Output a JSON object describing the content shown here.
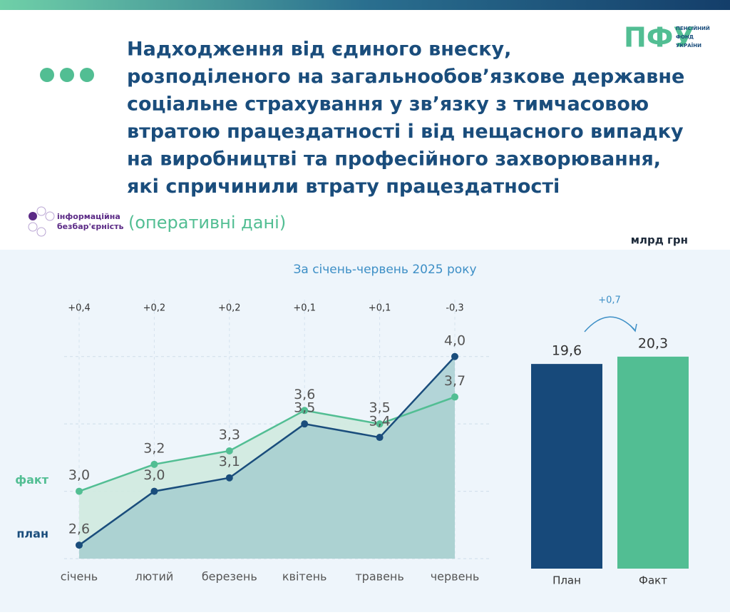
{
  "header": {
    "title_lines": [
      "Надходження від єдиного внеску,",
      "розподіленого на загальнообов’язкове державне",
      "соціальне страхування у зв’язку з тимчасовою",
      "втратою працездатності і від нещасного випадку",
      "на виробництві та професійного захворювання,",
      "які спричинили втрату працездатності"
    ],
    "subtitle": "(оперативні дані)",
    "logo": {
      "abbr": "ПФУ",
      "name_lines": [
        "ПЕНСІЙНИЙ",
        "ФОНД",
        "УКРАЇНИ"
      ]
    },
    "badge_lines": [
      "інформаційна",
      "безбар'єрність"
    ]
  },
  "unit": "млрд грн",
  "period": "За січень-червень 2025 року",
  "chart_data": [
    {
      "type": "line",
      "categories": [
        "січень",
        "лютий",
        "березень",
        "квітень",
        "травень",
        "червень"
      ],
      "series": [
        {
          "name": "факт",
          "color": "#52be93",
          "values": [
            3.0,
            3.2,
            3.3,
            3.6,
            3.5,
            3.7
          ],
          "value_labels": [
            "3,0",
            "3,2",
            "3,3",
            "3,6",
            "3,5",
            "3,7"
          ]
        },
        {
          "name": "план",
          "color": "#1a4d7c",
          "values": [
            2.6,
            3.0,
            3.1,
            3.5,
            3.4,
            4.0
          ],
          "value_labels": [
            "2,6",
            "3,0",
            "3,1",
            "3,5",
            "3,4",
            "4,0"
          ]
        }
      ],
      "difference_labels": [
        "+0,4",
        "+0,2",
        "+0,2",
        "+0,1",
        "+0,1",
        "-0,3"
      ],
      "ylim": [
        2.5,
        4.2
      ],
      "yticks": [
        2.5,
        3.0,
        3.5,
        4.0
      ],
      "grid": true
    },
    {
      "type": "bar",
      "categories": [
        "План",
        "Факт"
      ],
      "values": [
        19.6,
        20.3
      ],
      "value_labels": [
        "19,6",
        "20,3"
      ],
      "colors": [
        "#17497a",
        "#52be93"
      ],
      "annotation": "+0,7",
      "ylim": [
        0,
        22
      ]
    }
  ]
}
